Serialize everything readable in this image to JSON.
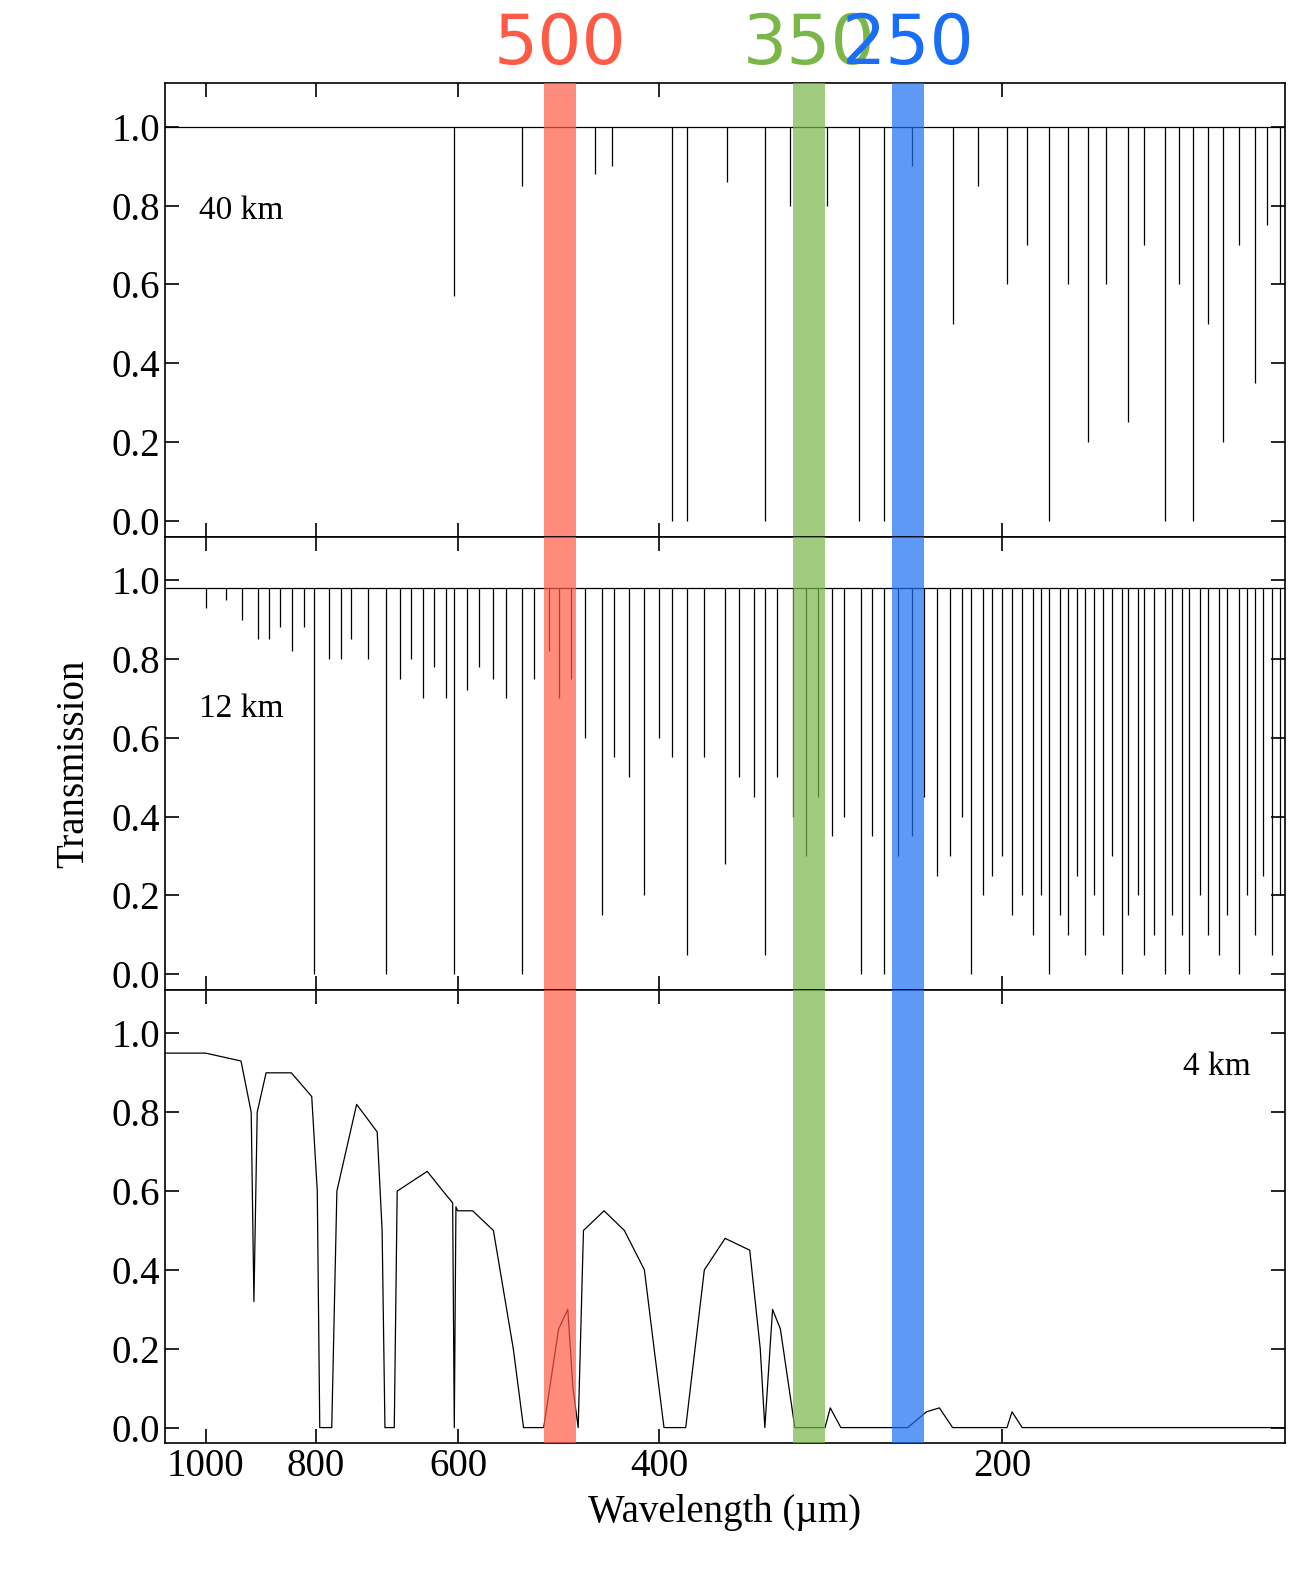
{
  "chart_data": [
    {
      "type": "line",
      "annotation": "40 km",
      "log": "x",
      "tick_labels": "y",
      "color": "#000000",
      "xlim": [
        1085,
        113
      ],
      "ylim": [
        -0.04,
        1.11
      ],
      "xticks": [
        1000,
        800,
        600,
        400,
        200
      ],
      "yticks": [
        0.0,
        0.2,
        0.4,
        0.6,
        0.8,
        1.0
      ],
      "x": [
        1085,
        113
      ],
      "values": [
        1.0,
        1.0
      ],
      "absorption": {
        "top": 1.0,
        "x": [
          605,
          528,
          455,
          440,
          390,
          378,
          349,
          323,
          307,
          285,
          267,
          254,
          240,
          221,
          210,
          198,
          190,
          182,
          175,
          168,
          162,
          155,
          150,
          144,
          140,
          136,
          132,
          128,
          124,
          120,
          117,
          114
        ],
        "bottom": [
          0.57,
          0.85,
          0.88,
          0.9,
          0.0,
          0.0,
          0.86,
          0.0,
          0.8,
          0.8,
          0.0,
          0.0,
          0.9,
          0.5,
          0.85,
          0.6,
          0.7,
          0.0,
          0.6,
          0.2,
          0.6,
          0.25,
          0.7,
          0.0,
          0.6,
          0.0,
          0.5,
          0.2,
          0.7,
          0.35,
          0.75,
          0.6
        ]
      },
      "bands": [
        {
          "label": "500",
          "color": "#ff5a46",
          "range": [
            473,
            505
          ]
        },
        {
          "label": "350",
          "color": "#7ab648",
          "range": [
            286,
            305
          ]
        },
        {
          "label": "250",
          "color": "#1a6ef5",
          "range": [
            234,
            250
          ]
        }
      ]
    },
    {
      "type": "line",
      "annotation": "12 km",
      "y_label": "Transmission",
      "log": "x",
      "tick_labels": "y",
      "color": "#000000",
      "xlim": [
        1085,
        113
      ],
      "ylim": [
        -0.04,
        1.11
      ],
      "xticks": [
        1000,
        800,
        600,
        400,
        200
      ],
      "yticks": [
        0.0,
        0.2,
        0.4,
        0.6,
        0.8,
        1.0
      ],
      "x": [
        1085,
        113
      ],
      "values": [
        0.98,
        0.98
      ],
      "absorption": {
        "top": 0.98,
        "x": [
          1000,
          960,
          930,
          900,
          880,
          860,
          840,
          820,
          804,
          780,
          760,
          745,
          720,
          694,
          675,
          660,
          645,
          630,
          615,
          605,
          590,
          575,
          560,
          545,
          528,
          515,
          500,
          490,
          478,
          465,
          449,
          438,
          425,
          412,
          400,
          390,
          378,
          365,
          350,
          340,
          330,
          323,
          315,
          305,
          297,
          290,
          282,
          275,
          266,
          260,
          254,
          247,
          240,
          234,
          228,
          222,
          217,
          213,
          208,
          204,
          200,
          196,
          192,
          188,
          185,
          182,
          178,
          175,
          172,
          169,
          166,
          163,
          160,
          157,
          155,
          152,
          150,
          147,
          144,
          142,
          139,
          137,
          134,
          132,
          129,
          127,
          124,
          122,
          120,
          118,
          116,
          114
        ],
        "bottom": [
          0.93,
          0.95,
          0.9,
          0.85,
          0.85,
          0.88,
          0.82,
          0.88,
          0.0,
          0.8,
          0.8,
          0.85,
          0.8,
          0.0,
          0.75,
          0.8,
          0.7,
          0.78,
          0.7,
          0.0,
          0.72,
          0.78,
          0.75,
          0.7,
          0.0,
          0.75,
          0.82,
          0.7,
          0.75,
          0.6,
          0.15,
          0.55,
          0.5,
          0.2,
          0.6,
          0.55,
          0.05,
          0.55,
          0.28,
          0.5,
          0.45,
          0.05,
          0.5,
          0.4,
          0.3,
          0.45,
          0.35,
          0.4,
          0.0,
          0.35,
          0.0,
          0.3,
          0.35,
          0.45,
          0.25,
          0.3,
          0.4,
          0.0,
          0.2,
          0.25,
          0.3,
          0.15,
          0.2,
          0.1,
          0.2,
          0.0,
          0.15,
          0.1,
          0.25,
          0.05,
          0.2,
          0.1,
          0.3,
          0.0,
          0.15,
          0.2,
          0.05,
          0.1,
          0.0,
          0.15,
          0.1,
          0.0,
          0.2,
          0.1,
          0.05,
          0.15,
          0.0,
          0.2,
          0.1,
          0.25,
          0.05,
          0.2
        ]
      }
    },
    {
      "type": "line",
      "annotation": "4 km",
      "x_label": "Wavelength (µm)",
      "log": "x",
      "color": "#000000",
      "xlim": [
        1085,
        113
      ],
      "ylim": [
        -0.04,
        1.11
      ],
      "xticks": [
        1000,
        800,
        600,
        400,
        200
      ],
      "yticks": [
        0.0,
        0.2,
        0.4,
        0.6,
        0.8,
        1.0
      ],
      "x": [
        1085,
        1000,
        931,
        912,
        907,
        901,
        885,
        841,
        807,
        798,
        794,
        775,
        767,
        737,
        707,
        700,
        696,
        683,
        679,
        639,
        619,
        607,
        605,
        603,
        601,
        583,
        559,
        537,
        526,
        505,
        490,
        481,
        476,
        471,
        466,
        447,
        429,
        412,
        404,
        396,
        379,
        365,
        350,
        333,
        326,
        323,
        318,
        313,
        304,
        286,
        283,
        277,
        242,
        233,
        227,
        221,
        198,
        196,
        192,
        113
      ],
      "values": [
        0.95,
        0.95,
        0.93,
        0.8,
        0.32,
        0.8,
        0.9,
        0.9,
        0.84,
        0.6,
        0.0,
        0.0,
        0.6,
        0.82,
        0.75,
        0.5,
        0.0,
        0.0,
        0.6,
        0.65,
        0.6,
        0.57,
        0.0,
        0.56,
        0.55,
        0.55,
        0.5,
        0.2,
        0.0,
        0.0,
        0.25,
        0.3,
        0.1,
        0.0,
        0.5,
        0.55,
        0.5,
        0.4,
        0.2,
        0.0,
        0.0,
        0.4,
        0.48,
        0.45,
        0.2,
        0.0,
        0.3,
        0.25,
        0.0,
        0.0,
        0.05,
        0.0,
        0.0,
        0.04,
        0.05,
        0.0,
        0.0,
        0.04,
        0.0,
        0.0
      ]
    }
  ]
}
